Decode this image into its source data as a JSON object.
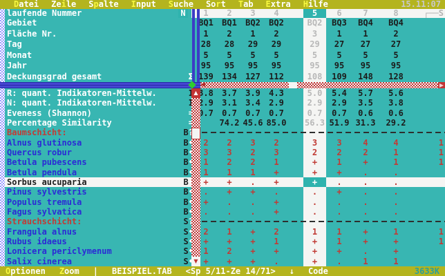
{
  "menu": {
    "items": [
      {
        "pre": "",
        "hot": "D",
        "post": "atei"
      },
      {
        "pre": "Ze",
        "hot": "i",
        "post": "le"
      },
      {
        "pre": "S",
        "hot": "p",
        "post": "alte"
      },
      {
        "pre": "",
        "hot": "I",
        "post": "nput"
      },
      {
        "pre": "",
        "hot": "S",
        "post": "uche"
      },
      {
        "pre": "So",
        "hot": "r",
        "post": "t"
      },
      {
        "pre": "",
        "hot": "T",
        "post": "ab"
      },
      {
        "pre": "",
        "hot": "E",
        "post": "xtra"
      },
      {
        "pre": "",
        "hot": "H",
        "post": "ilfe"
      }
    ],
    "time": "15.11:07"
  },
  "frozen_pane": {
    "header_row": {
      "label": "laufende Nummer",
      "marker": "N",
      "columns": [
        "1",
        "2",
        "3",
        "4",
        "5",
        "6",
        "7",
        "8"
      ],
      "selected_column": "5",
      "corner_glyph": "┌──S"
    },
    "rows": [
      {
        "label": "Gebiet",
        "marker": "",
        "values": [
          "BQ1",
          "BQ1",
          "BQ2",
          "BQ2",
          "BQ2",
          "BQ3",
          "BQ4",
          "BQ4"
        ]
      },
      {
        "label": "Fläche Nr.",
        "marker": "",
        "values": [
          "1",
          "2",
          "1",
          "2",
          "3",
          "1",
          "1",
          "2"
        ]
      },
      {
        "label": "Tag",
        "marker": "",
        "values": [
          "28",
          "28",
          "29",
          "29",
          "29",
          "27",
          "27",
          "27"
        ]
      },
      {
        "label": "Monat",
        "marker": "",
        "values": [
          "5",
          "5",
          "5",
          "5",
          "5",
          "5",
          "5",
          "5"
        ]
      },
      {
        "label": "Jahr",
        "marker": "",
        "values": [
          "95",
          "95",
          "95",
          "95",
          "95",
          "95",
          "95",
          "95"
        ]
      },
      {
        "label": "Deckungsgrad gesamt",
        "marker": "Σ",
        "values": [
          "139",
          "134",
          "127",
          "112",
          "108",
          "109",
          "148",
          "128"
        ]
      }
    ]
  },
  "main_pane": {
    "rows": [
      {
        "label": "R: quant. Indikatoren-Mittelw.",
        "marker": "I",
        "type": "quant",
        "values": [
          "3.8",
          "3.7",
          "3.9",
          "4.3",
          "5.0",
          "5.4",
          "5.7",
          "5.6"
        ],
        "extra": ""
      },
      {
        "label": "N: quant. Indikatoren-Mittelw.",
        "marker": "I",
        "type": "quant",
        "values": [
          "2.9",
          "3.1",
          "3.4",
          "2.9",
          "2.9",
          "2.9",
          "3.5",
          "3.8"
        ],
        "extra": ""
      },
      {
        "label": "Eveness (Shannon)",
        "marker": "=",
        "type": "quant",
        "values": [
          "0.7",
          "0.7",
          "0.7",
          "0.7",
          "0.7",
          "0.7",
          "0.6",
          "0.6"
        ],
        "extra": ""
      },
      {
        "label": "Percentage Similarity",
        "marker": "=",
        "type": "quant",
        "values": [
          "",
          "74.2",
          "45.6",
          "85.0",
          "56.3",
          "51.9",
          "31.3",
          "29.2"
        ],
        "extra": ""
      },
      {
        "label": "Baumschicht:",
        "marker": "B?",
        "type": "section",
        "values": [
          "",
          "",
          "",
          "",
          "",
          "",
          "",
          ""
        ],
        "extra": ""
      },
      {
        "label": "Alnus glutinosa",
        "marker": "B•",
        "type": "species",
        "values": [
          "2",
          "2",
          "3",
          "2",
          "3",
          "3",
          "4",
          "4"
        ],
        "extra": "1"
      },
      {
        "label": "Quercus robur",
        "marker": "B•",
        "type": "species",
        "values": [
          "3",
          "3",
          "2",
          "3",
          "2",
          "2",
          "2",
          "1"
        ],
        "extra": "1"
      },
      {
        "label": "Betula pubescens",
        "marker": "B•",
        "type": "species",
        "values": [
          "1",
          "2",
          "2",
          "1",
          "+",
          "1",
          "+",
          "1"
        ],
        "extra": "1"
      },
      {
        "label": "Betula pendula",
        "marker": "B•",
        "type": "species",
        "values": [
          "1",
          "1",
          "1",
          "+",
          "+",
          "+",
          ".",
          "."
        ],
        "extra": ""
      },
      {
        "label": "Sorbus aucuparia",
        "marker": "B•",
        "type": "species",
        "selected": true,
        "values": [
          "+",
          "+",
          ".",
          "+",
          "+",
          ".",
          ".",
          "."
        ],
        "extra": ""
      },
      {
        "label": "Pinus sylvestris",
        "marker": "B•",
        "type": "species",
        "values": [
          ".",
          "+",
          "+",
          ".",
          ".",
          "+",
          ".",
          "."
        ],
        "extra": ""
      },
      {
        "label": "Populus tremula",
        "marker": "B•",
        "type": "species",
        "values": [
          "+",
          ".",
          ".",
          "+",
          ".",
          ".",
          ".",
          "."
        ],
        "extra": ""
      },
      {
        "label": "Fagus sylvatica",
        "marker": "B•",
        "type": "species",
        "values": [
          ".",
          ".",
          ".",
          "+",
          ".",
          ".",
          ".",
          "."
        ],
        "extra": ""
      },
      {
        "label": "Strauchschicht:",
        "marker": "S?",
        "type": "section",
        "values": [
          "",
          "",
          "",
          "",
          "",
          "",
          "",
          ""
        ],
        "extra": ""
      },
      {
        "label": "Frangula alnus",
        "marker": "S•",
        "type": "species",
        "values": [
          "2",
          "1",
          "+",
          "2",
          "1",
          "1",
          "+",
          "1"
        ],
        "extra": "1"
      },
      {
        "label": "Rubus idaeus",
        "marker": "S•",
        "type": "species",
        "values": [
          "+",
          "+",
          "+",
          "1",
          "+",
          "1",
          "+",
          "+"
        ],
        "extra": "1"
      },
      {
        "label": "Lonicera periclymenum",
        "marker": "S•",
        "type": "species",
        "values": [
          "1",
          "2",
          "+",
          "+",
          "+",
          "+",
          ".",
          "+"
        ],
        "extra": ""
      },
      {
        "label": "Salix cinerea",
        "marker": "S•",
        "type": "species",
        "values": [
          "+",
          "+",
          "+",
          ".",
          "+",
          ".",
          "1",
          "1"
        ],
        "extra": ""
      }
    ]
  },
  "status_bar": {
    "items": [
      {
        "pre": "",
        "hot": "O",
        "post": "ptionen"
      },
      {
        "pre": "",
        "hot": "Z",
        "post": "oom"
      }
    ],
    "separator": "|",
    "filename": "BEISPIEL.TAB",
    "position": "<Sp 5/11-Ze 14/71>",
    "arrow": "↓",
    "mode": "Code",
    "memory": "3633K"
  },
  "colors": {
    "menubar_olive": "#b4b41e",
    "hotkey_yellow": "#f8f840",
    "teal_background": "#38b6b2",
    "selected_band_white": "#f5f5f3",
    "species_blue": "#2b2bd5",
    "value_red": "#c13b35",
    "scrollbar_red": "#c23434",
    "pane_border_blue": "#4646d2",
    "splitter_diamond_green": "#2ecc2e",
    "time_gray": "#c8c8c8",
    "memory_teal": "#2e9e99"
  }
}
